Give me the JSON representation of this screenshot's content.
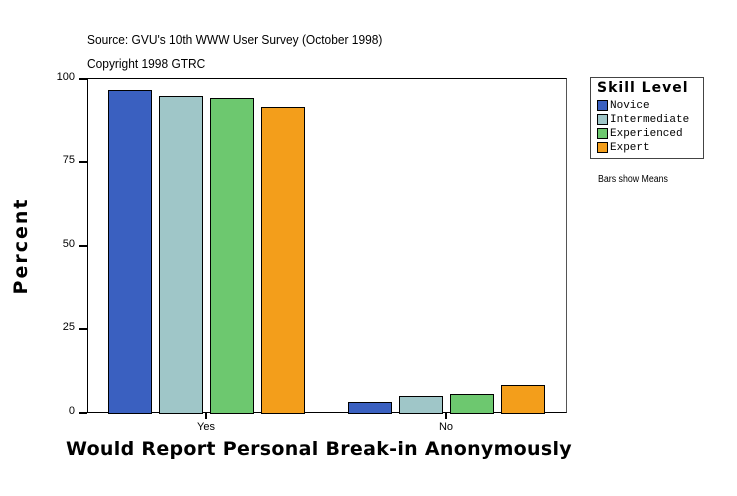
{
  "header": {
    "source": "Source: GVU's 10th WWW User Survey (October 1998)",
    "copyright": "Copyright 1998 GTRC"
  },
  "legend": {
    "title": "Skill Level",
    "items": [
      {
        "label": "Novice",
        "color": "#3a60c0"
      },
      {
        "label": "Intermediate",
        "color": "#9fc6c8"
      },
      {
        "label": "Experienced",
        "color": "#6dc86f"
      },
      {
        "label": "Expert",
        "color": "#f39e1b"
      }
    ]
  },
  "note": "Bars show Means",
  "axes": {
    "ytitle": "Percent",
    "xtitle": "Would Report Personal Break-in Anonymously",
    "yticks": [
      "0",
      "25",
      "50",
      "75",
      "100"
    ],
    "xticks": [
      "Yes",
      "No"
    ]
  },
  "chart_data": {
    "type": "bar",
    "title": "",
    "subtitle": "Source: GVU's 10th WWW User Survey (October 1998) / Copyright 1998 GTRC",
    "xlabel": "Would Report Personal Break-in Anonymously",
    "ylabel": "Percent",
    "ylim": [
      0,
      100
    ],
    "yticks": [
      0,
      25,
      50,
      75,
      100
    ],
    "grid": false,
    "legend_title": "Skill Level",
    "legend_position": "right",
    "annotations": [
      "Bars show Means"
    ],
    "categories": [
      "Yes",
      "No"
    ],
    "series": [
      {
        "name": "Novice",
        "color": "#3a60c0",
        "values": [
          96.6,
          3.4
        ]
      },
      {
        "name": "Intermediate",
        "color": "#9fc6c8",
        "values": [
          94.8,
          5.2
        ]
      },
      {
        "name": "Experienced",
        "color": "#6dc86f",
        "values": [
          94.2,
          5.8
        ]
      },
      {
        "name": "Expert",
        "color": "#f39e1b",
        "values": [
          91.5,
          8.5
        ]
      }
    ]
  }
}
